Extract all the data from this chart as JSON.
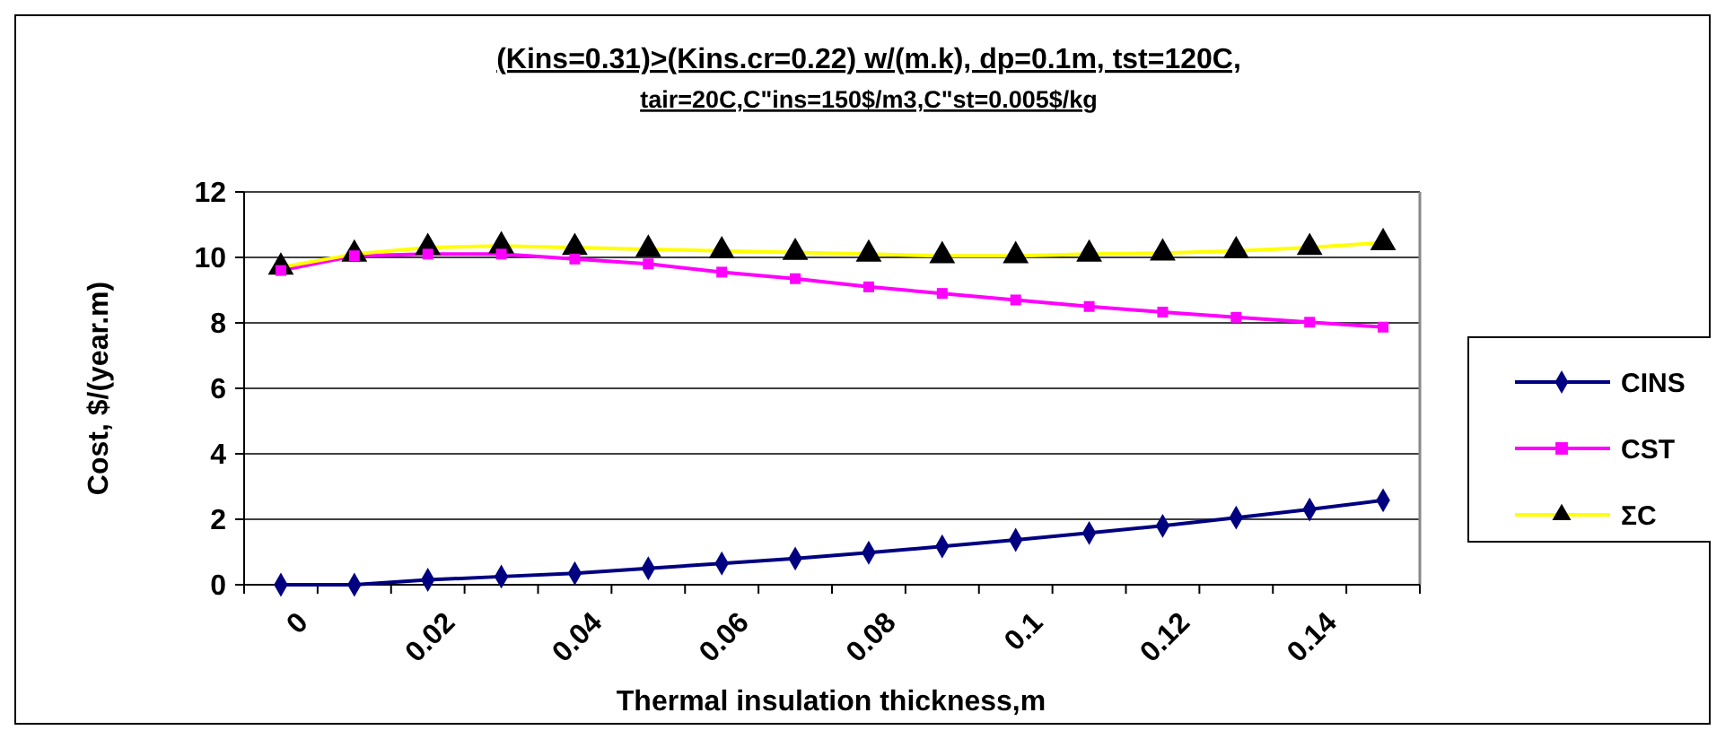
{
  "chart_data": {
    "type": "line",
    "title": "(Kins=0.31)>(Kins.cr=0.22) w/(m.k), dp=0.1m, tst=120C,",
    "subtitle": "tair=20C,C\"ins=150$/m3,C\"st=0.005$/kg",
    "xlabel": "Thermal insulation thickness,m",
    "ylabel": "Cost, $/(year.m)",
    "categories": [
      "0",
      null,
      "0.02",
      null,
      "0.04",
      null,
      "0.06",
      null,
      "0.08",
      null,
      "0.1",
      null,
      "0.12",
      null,
      "0.14",
      null
    ],
    "ylim": [
      0,
      12
    ],
    "yticks": [
      0,
      2,
      4,
      6,
      8,
      10,
      12
    ],
    "grid": "y",
    "legend": "right",
    "series": [
      {
        "name": "CINS",
        "color": "#000080",
        "marker": "diamond",
        "values": [
          0,
          0,
          0.15,
          0.25,
          0.35,
          0.5,
          0.65,
          0.8,
          0.98,
          1.17,
          1.37,
          1.58,
          1.8,
          2.05,
          2.3,
          2.58
        ]
      },
      {
        "name": "CST",
        "color": "#ff00ff",
        "marker": "square",
        "values": [
          9.6,
          10.05,
          10.1,
          10.1,
          9.95,
          9.8,
          9.55,
          9.35,
          9.1,
          8.9,
          8.7,
          8.5,
          8.33,
          8.17,
          8.02,
          7.87
        ]
      },
      {
        "name": "ΣC",
        "color": "#ffff00",
        "marker": "triangle",
        "values": [
          9.7,
          10.1,
          10.3,
          10.35,
          10.3,
          10.25,
          10.2,
          10.15,
          10.1,
          10.05,
          10.05,
          10.1,
          10.13,
          10.2,
          10.3,
          10.45
        ]
      }
    ]
  }
}
